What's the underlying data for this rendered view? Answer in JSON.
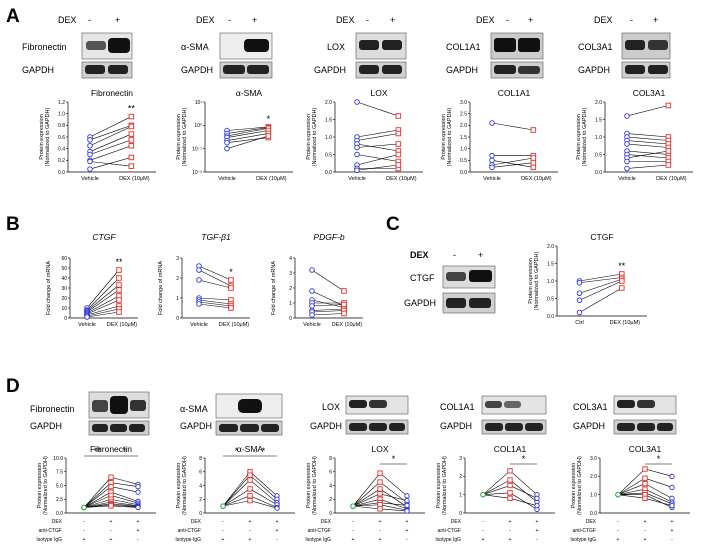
{
  "panels": {
    "a": "A",
    "b": "B",
    "c": "C",
    "d": "D"
  },
  "dex": {
    "label": "DEX",
    "minus": "-",
    "plus": "+"
  },
  "blot_names": {
    "fn": "Fibronectin",
    "sma": "α-SMA",
    "lox": "LOX",
    "col1": "COL1A1",
    "col3": "COL3A1",
    "gapdh": "GAPDH",
    "ctgf": "CTGF"
  },
  "axis": {
    "protein_l1": "Protein expression",
    "protein_l2": "(Normalized to GAPDH)",
    "mrna": "Fold change of mRNA",
    "vehicle": "Vehicle",
    "dex10": "DEX (10μM)",
    "ctrl": "Ctrl"
  },
  "sig": {
    "two": "**",
    "one": "*"
  },
  "treat_rows": {
    "dex": "DEX",
    "anti": "anti-CTGF",
    "iso": "Isotype IgG"
  },
  "treat_signs": [
    "-",
    "+",
    "+",
    "-",
    "-",
    "+",
    "+",
    "+",
    "-"
  ],
  "chart_data": [
    {
      "type": "line",
      "panel": "A",
      "title": "Fibronectin",
      "significance": "**",
      "ylim": [
        0,
        1.2
      ],
      "yticks": [
        "0.0",
        "0.2",
        "0.4",
        "0.6",
        "0.8",
        "1.0",
        "1.2"
      ],
      "x": [
        "Vehicle",
        "DEX (10μM)"
      ],
      "pairs": [
        [
          0.6,
          0.95
        ],
        [
          0.55,
          0.8
        ],
        [
          0.45,
          0.78
        ],
        [
          0.35,
          0.65
        ],
        [
          0.3,
          0.55
        ],
        [
          0.2,
          0.45
        ],
        [
          0.18,
          0.1
        ],
        [
          0.05,
          0.25
        ]
      ]
    },
    {
      "type": "line",
      "panel": "A",
      "title": "α-SMA",
      "significance": "*",
      "scale": "log",
      "ylim": [
        0.01,
        10
      ],
      "yticks": [
        "10⁻²",
        "10⁻¹",
        "10⁰",
        "10¹"
      ],
      "x": [
        "Vehicle",
        "DEX (10μM)"
      ],
      "pairs": [
        [
          0.6,
          0.85
        ],
        [
          0.45,
          0.8
        ],
        [
          0.35,
          0.75
        ],
        [
          0.3,
          0.6
        ],
        [
          0.22,
          0.45
        ],
        [
          0.18,
          0.3
        ],
        [
          0.1,
          0.35
        ]
      ]
    },
    {
      "type": "line",
      "panel": "A",
      "title": "LOX",
      "ylim": [
        0,
        2.0
      ],
      "yticks": [
        "0.0",
        "0.5",
        "1.0",
        "1.5",
        "2.0"
      ],
      "x": [
        "Vehicle",
        "DEX (10μM)"
      ],
      "pairs": [
        [
          2.0,
          1.6
        ],
        [
          1.0,
          1.2
        ],
        [
          0.9,
          1.1
        ],
        [
          0.8,
          0.6
        ],
        [
          0.7,
          0.8
        ],
        [
          0.5,
          0.3
        ],
        [
          0.2,
          0.5
        ],
        [
          0.1,
          0.1
        ],
        [
          0.05,
          0.2
        ]
      ]
    },
    {
      "type": "line",
      "panel": "A",
      "title": "COL1A1",
      "ylim": [
        0,
        3.0
      ],
      "yticks": [
        "0.0",
        "0.5",
        "1.0",
        "1.5",
        "2.0",
        "2.5",
        "3.0"
      ],
      "x": [
        "Vehicle",
        "DEX (10μM)"
      ],
      "pairs": [
        [
          2.1,
          1.8
        ],
        [
          0.7,
          0.7
        ],
        [
          0.5,
          0.2
        ],
        [
          0.3,
          0.6
        ],
        [
          0.2,
          0.4
        ]
      ]
    },
    {
      "type": "line",
      "panel": "A",
      "title": "COL3A1",
      "ylim": [
        0,
        2.0
      ],
      "yticks": [
        "0.0",
        "0.5",
        "1.0",
        "1.5",
        "2.0"
      ],
      "x": [
        "Vehicle",
        "DEX (10μM)"
      ],
      "pairs": [
        [
          1.6,
          1.9
        ],
        [
          1.1,
          1.0
        ],
        [
          1.0,
          0.9
        ],
        [
          0.9,
          0.8
        ],
        [
          0.8,
          0.7
        ],
        [
          0.6,
          0.5
        ],
        [
          0.5,
          0.4
        ],
        [
          0.4,
          0.6
        ],
        [
          0.3,
          0.3
        ],
        [
          0.1,
          0.2
        ]
      ]
    },
    {
      "type": "line",
      "panel": "B",
      "title": "CTGF",
      "significance": "**",
      "ylim": [
        0,
        60
      ],
      "yticks": [
        "0",
        "10",
        "20",
        "30",
        "40",
        "50",
        "60"
      ],
      "x": [
        "Vehicle",
        "DEX (10μM)"
      ],
      "pairs": [
        [
          10,
          48
        ],
        [
          8,
          40
        ],
        [
          7,
          33
        ],
        [
          6,
          28
        ],
        [
          5,
          22
        ],
        [
          4,
          18
        ],
        [
          3,
          12
        ],
        [
          2,
          9
        ],
        [
          1,
          6
        ]
      ]
    },
    {
      "type": "line",
      "panel": "B",
      "title": "TGF-β1",
      "significance": "*",
      "ylim": [
        0,
        3
      ],
      "yticks": [
        "0",
        "1",
        "2",
        "3"
      ],
      "x": [
        "Vehicle",
        "DEX (10μM)"
      ],
      "pairs": [
        [
          2.6,
          1.9
        ],
        [
          2.4,
          1.6
        ],
        [
          1.9,
          1.5
        ],
        [
          1.0,
          0.9
        ],
        [
          0.9,
          0.7
        ],
        [
          0.8,
          0.6
        ],
        [
          0.7,
          0.5
        ]
      ]
    },
    {
      "type": "line",
      "panel": "B",
      "title": "PDGF-b",
      "ylim": [
        0,
        4
      ],
      "yticks": [
        "0",
        "1",
        "2",
        "3",
        "4"
      ],
      "x": [
        "Vehicle",
        "DEX (10μM)"
      ],
      "pairs": [
        [
          3.2,
          1.8
        ],
        [
          1.8,
          0.8
        ],
        [
          1.2,
          0.7
        ],
        [
          1.0,
          1.0
        ],
        [
          0.8,
          0.9
        ],
        [
          0.5,
          0.6
        ],
        [
          0.4,
          0.5
        ],
        [
          0.2,
          0.3
        ]
      ]
    },
    {
      "type": "line",
      "panel": "C",
      "title": "CTGF",
      "significance": "**",
      "ylim": [
        0,
        2.0
      ],
      "yticks": [
        "0.0",
        "0.5",
        "1.0",
        "1.5",
        "2.0"
      ],
      "x": [
        "Ctrl",
        "DEX (10μM)"
      ],
      "pairs": [
        [
          1.0,
          1.2
        ],
        [
          0.95,
          1.1
        ],
        [
          0.65,
          1.05
        ],
        [
          0.45,
          1.0
        ],
        [
          0.1,
          0.8
        ]
      ]
    },
    {
      "type": "line",
      "panel": "D",
      "title": "Fibronectin",
      "sig_left": "**",
      "sig_right": "*",
      "ylim": [
        0,
        10
      ],
      "yticks": [
        "0.0",
        "2.5",
        "5.0",
        "7.5",
        "10.0"
      ],
      "groups": 3,
      "series": [
        [
          1,
          6.5,
          5.2
        ],
        [
          1,
          5.5,
          4.8
        ],
        [
          1,
          4.8,
          3.8
        ],
        [
          1,
          3.8,
          2.1
        ],
        [
          1,
          3.2,
          1.8
        ],
        [
          1,
          2.5,
          1.5
        ],
        [
          1,
          2.0,
          1.3
        ],
        [
          1,
          1.7,
          1.2
        ],
        [
          1,
          1.5,
          1.1
        ],
        [
          1,
          1.3,
          1.0
        ]
      ]
    },
    {
      "type": "line",
      "panel": "D",
      "title": "α-SMA",
      "sig_left": "*",
      "sig_right": "*",
      "ylim": [
        0,
        8
      ],
      "yticks": [
        "0",
        "2",
        "4",
        "6",
        "8"
      ],
      "groups": 3,
      "series": [
        [
          1,
          6.0,
          2.5
        ],
        [
          1,
          5.5,
          2.0
        ],
        [
          1,
          4.8,
          1.5
        ],
        [
          1,
          3.5,
          1.2
        ],
        [
          1,
          2.5,
          0.8
        ],
        [
          1,
          1.8,
          0.7
        ]
      ]
    },
    {
      "type": "line",
      "panel": "D",
      "title": "LOX",
      "sig_right": "*",
      "ylim": [
        0,
        8
      ],
      "yticks": [
        "0",
        "2",
        "4",
        "6",
        "8"
      ],
      "groups": 3,
      "series": [
        [
          1,
          5.8,
          2.5
        ],
        [
          1,
          4.5,
          1.5
        ],
        [
          1,
          3.5,
          0.9
        ],
        [
          1,
          2.8,
          1.8
        ],
        [
          1,
          2.0,
          0.6
        ],
        [
          1,
          1.5,
          1.1
        ],
        [
          1,
          1.2,
          0.4
        ],
        [
          1,
          0.6,
          0.3
        ]
      ]
    },
    {
      "type": "line",
      "panel": "D",
      "title": "COL1A1",
      "sig_right": "*",
      "ylim": [
        0,
        3
      ],
      "yticks": [
        "0",
        "1",
        "2",
        "3"
      ],
      "groups": 3,
      "series": [
        [
          1,
          2.3,
          1.0
        ],
        [
          1,
          1.8,
          0.6
        ],
        [
          1,
          1.5,
          0.8
        ],
        [
          1,
          1.1,
          0.2
        ],
        [
          1,
          0.8,
          0.4
        ]
      ]
    },
    {
      "type": "line",
      "panel": "D",
      "title": "COL3A1",
      "sig_right": "*",
      "ylim": [
        0,
        3.0
      ],
      "yticks": [
        "0.0",
        "1.0",
        "2.0",
        "3.0"
      ],
      "groups": 3,
      "series": [
        [
          1,
          2.4,
          2.0
        ],
        [
          1,
          1.9,
          1.4
        ],
        [
          1,
          1.6,
          0.8
        ],
        [
          1,
          1.3,
          0.6
        ],
        [
          1,
          1.1,
          0.5
        ],
        [
          1,
          1.0,
          0.3
        ],
        [
          1,
          0.8,
          0.4
        ]
      ]
    }
  ]
}
